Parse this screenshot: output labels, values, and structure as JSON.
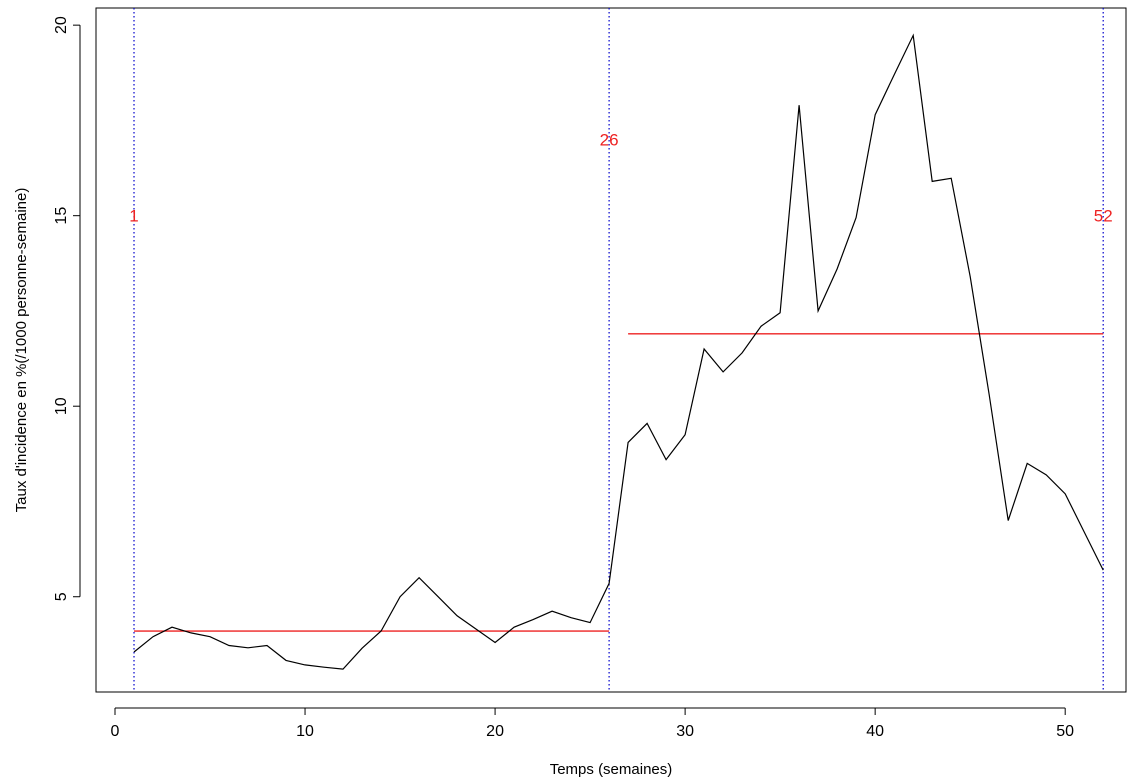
{
  "chart_data": {
    "type": "line",
    "title": "",
    "xlabel": "Temps (semaines)",
    "ylabel": "Taux d'incidence en %(/1000 personne-semaine)",
    "xlim": [
      -1.0,
      53.2
    ],
    "ylim": [
      2.5,
      20.45
    ],
    "xticks": [
      0,
      10,
      20,
      30,
      40,
      50
    ],
    "yticks": [
      5,
      10,
      15,
      20
    ],
    "grid": false,
    "line_color": "#000000",
    "series": [
      {
        "x": [
          1,
          2,
          3,
          4,
          5,
          6,
          7,
          8,
          9,
          10,
          11,
          12,
          13,
          14,
          15,
          16,
          17,
          18,
          19,
          20,
          21,
          22,
          23,
          24,
          25,
          26,
          27,
          28,
          29,
          30,
          31,
          32,
          33,
          34,
          35,
          36,
          37,
          38,
          39,
          40,
          41,
          42,
          43,
          44,
          45,
          46,
          47,
          48,
          49,
          50,
          51,
          52
        ],
        "values": [
          3.55,
          3.95,
          4.2,
          4.05,
          3.95,
          3.72,
          3.66,
          3.72,
          3.33,
          3.21,
          3.15,
          3.1,
          3.65,
          4.1,
          5.0,
          5.5,
          5.0,
          4.5,
          4.15,
          3.8,
          4.2,
          4.4,
          4.62,
          4.45,
          4.32,
          5.35,
          9.05,
          9.55,
          8.6,
          9.25,
          11.5,
          10.9,
          11.4,
          12.1,
          12.45,
          17.9,
          12.5,
          13.6,
          14.95,
          17.65,
          18.7,
          19.73,
          15.9,
          15.98,
          13.4,
          10.3,
          7.0,
          8.5,
          8.2,
          7.7,
          6.7,
          5.7
        ]
      }
    ],
    "vlines": {
      "x": [
        1,
        26,
        52
      ],
      "color": "#0000cc",
      "style": "dotted"
    },
    "segments": {
      "color": "#ee2222",
      "items": [
        {
          "x0": 1,
          "x1": 26,
          "y": 4.1
        },
        {
          "x0": 27,
          "x1": 52,
          "y": 11.9
        }
      ]
    },
    "annotations": {
      "color": "#ee2222",
      "items": [
        {
          "text": "1",
          "x": 1,
          "y": 15.0
        },
        {
          "text": "26",
          "x": 26,
          "y": 17.0
        },
        {
          "text": "52",
          "x": 52,
          "y": 15.0
        }
      ]
    }
  }
}
